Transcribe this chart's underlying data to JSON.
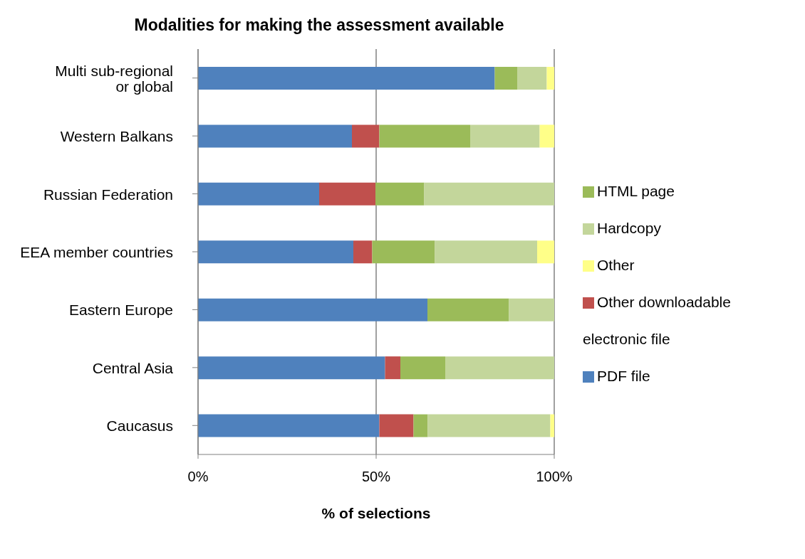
{
  "chart_data": {
    "type": "bar",
    "orientation": "horizontal",
    "stacked": true,
    "title": "Modalities for making the assessment available",
    "xlabel": "% of selections",
    "categories": [
      "Multi sub-regional or global",
      "Western Balkans",
      "Russian Federation",
      "EEA member countries",
      "Eastern Europe",
      "Central Asia",
      "Caucasus"
    ],
    "series": [
      {
        "name": "PDF file",
        "color": "#4f81bd",
        "values": [
          83.3,
          43.2,
          34.0,
          43.6,
          64.4,
          52.5,
          50.9
        ]
      },
      {
        "name": "Other downloadable electronic file",
        "color": "#c0504d",
        "values": [
          0,
          7.7,
          15.8,
          5.3,
          0,
          4.3,
          9.6
        ]
      },
      {
        "name": "HTML page",
        "color": "#9bbb59",
        "values": [
          6.3,
          25.5,
          13.7,
          17.6,
          22.9,
          12.6,
          4.0
        ]
      },
      {
        "name": "Hardcopy",
        "color": "#c3d69b",
        "values": [
          8.3,
          19.5,
          36.5,
          28.7,
          12.7,
          30.6,
          34.4
        ]
      },
      {
        "name": "Other",
        "color": "#ffff88",
        "values": [
          2.1,
          4.1,
          0,
          4.8,
          0,
          0,
          1.1
        ]
      }
    ],
    "xlim": [
      0,
      100
    ],
    "xticks": [
      {
        "value": 0,
        "label": "0%"
      },
      {
        "value": 50,
        "label": "50%"
      },
      {
        "value": 100,
        "label": "100%"
      }
    ],
    "grid": "x",
    "legend": "right"
  }
}
